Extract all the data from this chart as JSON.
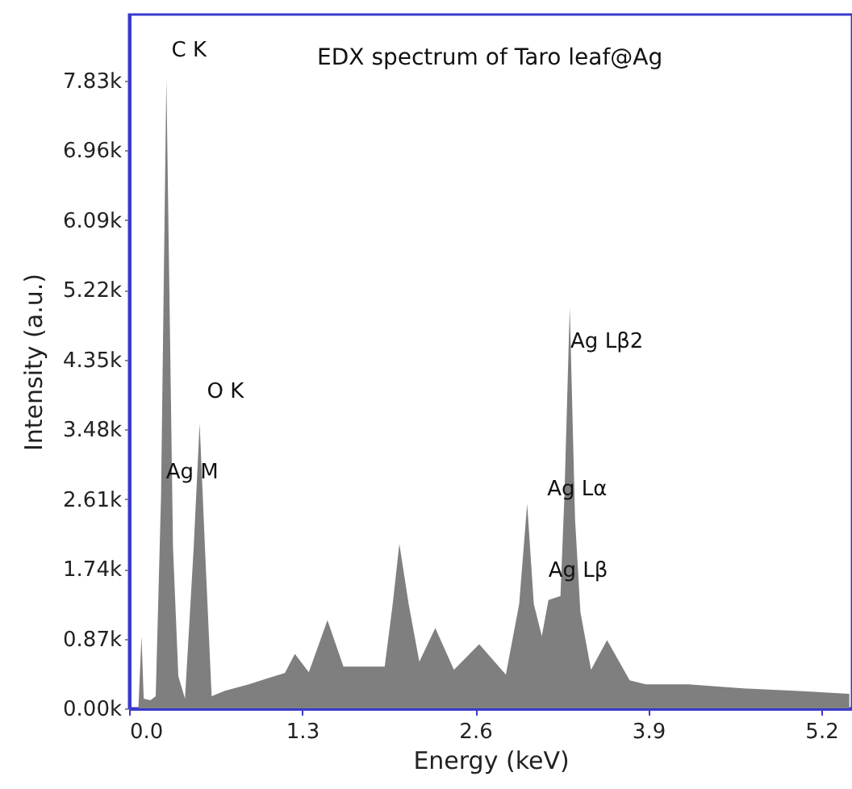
{
  "chart_data": {
    "type": "area",
    "title": "EDX spectrum of Taro leaf@Ag",
    "xlabel": "Energy (keV)",
    "ylabel": "Intensity (a.u.)",
    "x": [
      0.07,
      0.093,
      0.11,
      0.16,
      0.2,
      0.24,
      0.28,
      0.33,
      0.37,
      0.42,
      0.485,
      0.53,
      0.57,
      0.62,
      0.72,
      0.9,
      1.05,
      1.17,
      1.245,
      1.35,
      1.49,
      1.61,
      1.92,
      1.98,
      2.03,
      2.1,
      2.18,
      2.3,
      2.44,
      2.63,
      2.83,
      2.93,
      2.99,
      3.04,
      3.1,
      3.15,
      3.24,
      3.27,
      3.31,
      3.35,
      3.39,
      3.47,
      3.59,
      3.76,
      3.88,
      4.2,
      4.61,
      5.0,
      5.41
    ],
    "series": [
      {
        "color": "#7f7f7f",
        "values": [
          0,
          900,
          120,
          100,
          150,
          2650,
          7850,
          2000,
          400,
          120,
          2000,
          3550,
          2000,
          150,
          220,
          300,
          380,
          440,
          680,
          450,
          1100,
          520,
          520,
          1300,
          2050,
          1300,
          580,
          1000,
          480,
          800,
          420,
          1300,
          2550,
          1300,
          900,
          1350,
          1400,
          2650,
          5000,
          2350,
          1200,
          480,
          850,
          350,
          300,
          300,
          250,
          220,
          180
        ]
      }
    ],
    "xlim": [
      0,
      5.43
    ],
    "ylim": [
      0,
      8650
    ],
    "xticks": [
      {
        "value": 0,
        "label": "0.0"
      },
      1.3,
      2.6,
      3.9,
      5.2
    ],
    "yticks": [
      {
        "value": 0,
        "label": "0.00k"
      },
      {
        "value": 870,
        "label": "0.87k"
      },
      {
        "value": 1740,
        "label": "1.74k"
      },
      {
        "value": 2610,
        "label": "2.61k"
      },
      {
        "value": 3480,
        "label": "3.48k"
      },
      {
        "value": 4350,
        "label": "4.35k"
      },
      {
        "value": 5220,
        "label": "5.22k"
      },
      {
        "value": 6090,
        "label": "6.09k"
      },
      {
        "value": 6960,
        "label": "6.96k"
      },
      {
        "value": 7830,
        "label": "7.83k"
      }
    ],
    "annotations": [
      {
        "text": "C K",
        "x": 0.28,
        "y": 7850
      },
      {
        "text": "O K",
        "x": 0.53,
        "y": 3550
      },
      {
        "text": "Ag M",
        "x": 0.28,
        "y": 2950
      },
      {
        "text": "Ag Lβ2",
        "x": 3.31,
        "y": 5000
      },
      {
        "text": "Ag Lα",
        "x": 2.99,
        "y": 2550
      },
      {
        "text": "Ag Lβ",
        "x": 3.24,
        "y": 1400
      }
    ]
  }
}
